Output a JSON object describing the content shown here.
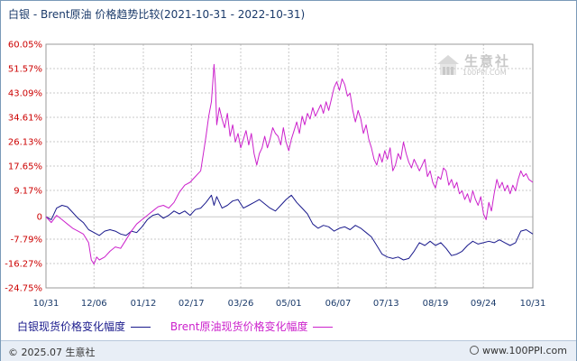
{
  "title": "白银 - Brent原油 价格趋势比较(2021-10-31 - 2022-10-31)",
  "watermark": {
    "text": "生意社",
    "url": "100PPI.COM"
  },
  "footer": {
    "copyright": "© 2025.07 生意社",
    "site": "www.100PPI.com"
  },
  "colors": {
    "silver": "#1a1a8c",
    "brent": "#cc22cc",
    "axis_text": "#cc0000",
    "grid": "#c8c8c8"
  },
  "chart_data": {
    "type": "line",
    "xlabel": "",
    "ylabel": "",
    "ylim": [
      -24.75,
      60.05
    ],
    "yticks": [
      "60.05%",
      "51.57%",
      "43.09%",
      "34.61%",
      "26.13%",
      "17.65%",
      "9.17%",
      "0",
      "-7.79%",
      "-16.27%",
      "-24.75%"
    ],
    "ytick_values": [
      60.05,
      51.57,
      43.09,
      34.61,
      26.13,
      17.65,
      9.17,
      0,
      -7.79,
      -16.27,
      -24.75
    ],
    "xticks": [
      "10/31",
      "12/06",
      "01/12",
      "02/17",
      "03/26",
      "05/01",
      "06/07",
      "07/13",
      "08/19",
      "09/24",
      "10/31"
    ],
    "xtick_days": [
      0,
      36,
      73,
      109,
      146,
      182,
      219,
      255,
      292,
      328,
      365
    ],
    "grid": true,
    "legend_position": "bottom",
    "series": [
      {
        "name": "白银现货价格变化幅度",
        "color": "#1a1a8c",
        "points": [
          [
            0,
            0
          ],
          [
            4,
            -1
          ],
          [
            8,
            3
          ],
          [
            12,
            4
          ],
          [
            16,
            3.5
          ],
          [
            20,
            1.5
          ],
          [
            24,
            -0.5
          ],
          [
            28,
            -2
          ],
          [
            32,
            -4.5
          ],
          [
            36,
            -5.5
          ],
          [
            40,
            -6.5
          ],
          [
            44,
            -5
          ],
          [
            48,
            -4.5
          ],
          [
            52,
            -5
          ],
          [
            56,
            -6
          ],
          [
            60,
            -6.5
          ],
          [
            64,
            -5
          ],
          [
            68,
            -5.5
          ],
          [
            72,
            -3.5
          ],
          [
            76,
            -1
          ],
          [
            80,
            0.5
          ],
          [
            84,
            1
          ],
          [
            88,
            -0.5
          ],
          [
            92,
            0.5
          ],
          [
            96,
            2
          ],
          [
            100,
            1
          ],
          [
            104,
            2
          ],
          [
            108,
            0.5
          ],
          [
            112,
            2.5
          ],
          [
            116,
            3
          ],
          [
            120,
            5
          ],
          [
            124,
            7.5
          ],
          [
            126,
            4
          ],
          [
            128,
            7
          ],
          [
            132,
            3
          ],
          [
            136,
            4
          ],
          [
            140,
            5.5
          ],
          [
            144,
            6
          ],
          [
            148,
            3
          ],
          [
            152,
            4
          ],
          [
            156,
            5
          ],
          [
            160,
            6
          ],
          [
            164,
            4.5
          ],
          [
            168,
            3
          ],
          [
            172,
            2
          ],
          [
            176,
            4
          ],
          [
            180,
            6
          ],
          [
            184,
            7.5
          ],
          [
            188,
            5
          ],
          [
            192,
            3
          ],
          [
            196,
            1
          ],
          [
            200,
            -2.5
          ],
          [
            204,
            -4
          ],
          [
            208,
            -3
          ],
          [
            212,
            -3.5
          ],
          [
            216,
            -5
          ],
          [
            220,
            -4
          ],
          [
            224,
            -3.5
          ],
          [
            228,
            -4.5
          ],
          [
            232,
            -3
          ],
          [
            236,
            -4
          ],
          [
            240,
            -5.5
          ],
          [
            244,
            -7
          ],
          [
            248,
            -10
          ],
          [
            252,
            -13
          ],
          [
            256,
            -14
          ],
          [
            260,
            -14.5
          ],
          [
            264,
            -14
          ],
          [
            268,
            -15
          ],
          [
            272,
            -14.5
          ],
          [
            276,
            -12
          ],
          [
            280,
            -9
          ],
          [
            284,
            -10
          ],
          [
            288,
            -8.5
          ],
          [
            292,
            -10
          ],
          [
            296,
            -9
          ],
          [
            300,
            -11
          ],
          [
            304,
            -13.5
          ],
          [
            308,
            -13
          ],
          [
            312,
            -12
          ],
          [
            316,
            -10
          ],
          [
            320,
            -8.5
          ],
          [
            324,
            -9.5
          ],
          [
            328,
            -9
          ],
          [
            332,
            -8.5
          ],
          [
            336,
            -9
          ],
          [
            340,
            -8
          ],
          [
            344,
            -9
          ],
          [
            348,
            -10
          ],
          [
            352,
            -9
          ],
          [
            356,
            -5
          ],
          [
            360,
            -4.5
          ],
          [
            365,
            -6
          ]
        ]
      },
      {
        "name": "Brent原油现货价格变化幅度",
        "color": "#cc22cc",
        "points": [
          [
            0,
            0
          ],
          [
            4,
            -2
          ],
          [
            8,
            0.5
          ],
          [
            12,
            -1
          ],
          [
            16,
            -2.5
          ],
          [
            20,
            -4
          ],
          [
            24,
            -5
          ],
          [
            28,
            -6
          ],
          [
            32,
            -9
          ],
          [
            34,
            -15
          ],
          [
            36,
            -16.5
          ],
          [
            38,
            -14
          ],
          [
            40,
            -15
          ],
          [
            44,
            -14
          ],
          [
            48,
            -12
          ],
          [
            52,
            -10.5
          ],
          [
            56,
            -11
          ],
          [
            60,
            -8
          ],
          [
            64,
            -5
          ],
          [
            68,
            -2.5
          ],
          [
            72,
            -1
          ],
          [
            76,
            0.5
          ],
          [
            80,
            2
          ],
          [
            84,
            3.5
          ],
          [
            88,
            4
          ],
          [
            92,
            3
          ],
          [
            96,
            5
          ],
          [
            100,
            8.5
          ],
          [
            104,
            11
          ],
          [
            108,
            12
          ],
          [
            112,
            14
          ],
          [
            116,
            16
          ],
          [
            118,
            22
          ],
          [
            120,
            28
          ],
          [
            122,
            35
          ],
          [
            124,
            40
          ],
          [
            126,
            53
          ],
          [
            127,
            46
          ],
          [
            128,
            32
          ],
          [
            130,
            38
          ],
          [
            132,
            34
          ],
          [
            134,
            31
          ],
          [
            136,
            36
          ],
          [
            138,
            28
          ],
          [
            140,
            32
          ],
          [
            142,
            26
          ],
          [
            144,
            29
          ],
          [
            146,
            24
          ],
          [
            148,
            27
          ],
          [
            150,
            30
          ],
          [
            152,
            25
          ],
          [
            154,
            29
          ],
          [
            156,
            22
          ],
          [
            158,
            18
          ],
          [
            160,
            22
          ],
          [
            162,
            24
          ],
          [
            164,
            28
          ],
          [
            166,
            24
          ],
          [
            168,
            27
          ],
          [
            170,
            31
          ],
          [
            172,
            29
          ],
          [
            174,
            28
          ],
          [
            176,
            25
          ],
          [
            178,
            31
          ],
          [
            180,
            26
          ],
          [
            182,
            23
          ],
          [
            184,
            27
          ],
          [
            186,
            30
          ],
          [
            188,
            33
          ],
          [
            190,
            29
          ],
          [
            192,
            35
          ],
          [
            194,
            32
          ],
          [
            196,
            36
          ],
          [
            198,
            34
          ],
          [
            200,
            38
          ],
          [
            202,
            35
          ],
          [
            204,
            37
          ],
          [
            206,
            39
          ],
          [
            208,
            36
          ],
          [
            210,
            40
          ],
          [
            212,
            37
          ],
          [
            214,
            41
          ],
          [
            216,
            45
          ],
          [
            218,
            47
          ],
          [
            220,
            44
          ],
          [
            222,
            48
          ],
          [
            224,
            46
          ],
          [
            226,
            42
          ],
          [
            228,
            43
          ],
          [
            230,
            37
          ],
          [
            232,
            33
          ],
          [
            234,
            37
          ],
          [
            236,
            34
          ],
          [
            238,
            29
          ],
          [
            240,
            32
          ],
          [
            242,
            27
          ],
          [
            244,
            24
          ],
          [
            246,
            20
          ],
          [
            248,
            18
          ],
          [
            250,
            22
          ],
          [
            252,
            19
          ],
          [
            254,
            23
          ],
          [
            256,
            20
          ],
          [
            258,
            24
          ],
          [
            260,
            16
          ],
          [
            262,
            18
          ],
          [
            264,
            22
          ],
          [
            266,
            20
          ],
          [
            268,
            26
          ],
          [
            270,
            22
          ],
          [
            272,
            19
          ],
          [
            274,
            17
          ],
          [
            276,
            20
          ],
          [
            278,
            18
          ],
          [
            280,
            16
          ],
          [
            282,
            18
          ],
          [
            284,
            20
          ],
          [
            286,
            14
          ],
          [
            288,
            16
          ],
          [
            290,
            12
          ],
          [
            292,
            10
          ],
          [
            294,
            14
          ],
          [
            296,
            13
          ],
          [
            298,
            17
          ],
          [
            300,
            16
          ],
          [
            302,
            11
          ],
          [
            304,
            13
          ],
          [
            306,
            10
          ],
          [
            308,
            12
          ],
          [
            310,
            8
          ],
          [
            312,
            9
          ],
          [
            314,
            6
          ],
          [
            316,
            8
          ],
          [
            318,
            5
          ],
          [
            320,
            9
          ],
          [
            322,
            6
          ],
          [
            324,
            4
          ],
          [
            326,
            7
          ],
          [
            328,
            1
          ],
          [
            330,
            -1
          ],
          [
            332,
            5
          ],
          [
            334,
            2
          ],
          [
            336,
            8
          ],
          [
            338,
            13
          ],
          [
            340,
            10
          ],
          [
            342,
            12
          ],
          [
            344,
            9
          ],
          [
            346,
            11
          ],
          [
            348,
            8
          ],
          [
            350,
            11
          ],
          [
            352,
            9
          ],
          [
            354,
            13
          ],
          [
            356,
            16
          ],
          [
            358,
            14
          ],
          [
            360,
            15
          ],
          [
            362,
            13
          ],
          [
            365,
            12
          ]
        ]
      }
    ]
  }
}
